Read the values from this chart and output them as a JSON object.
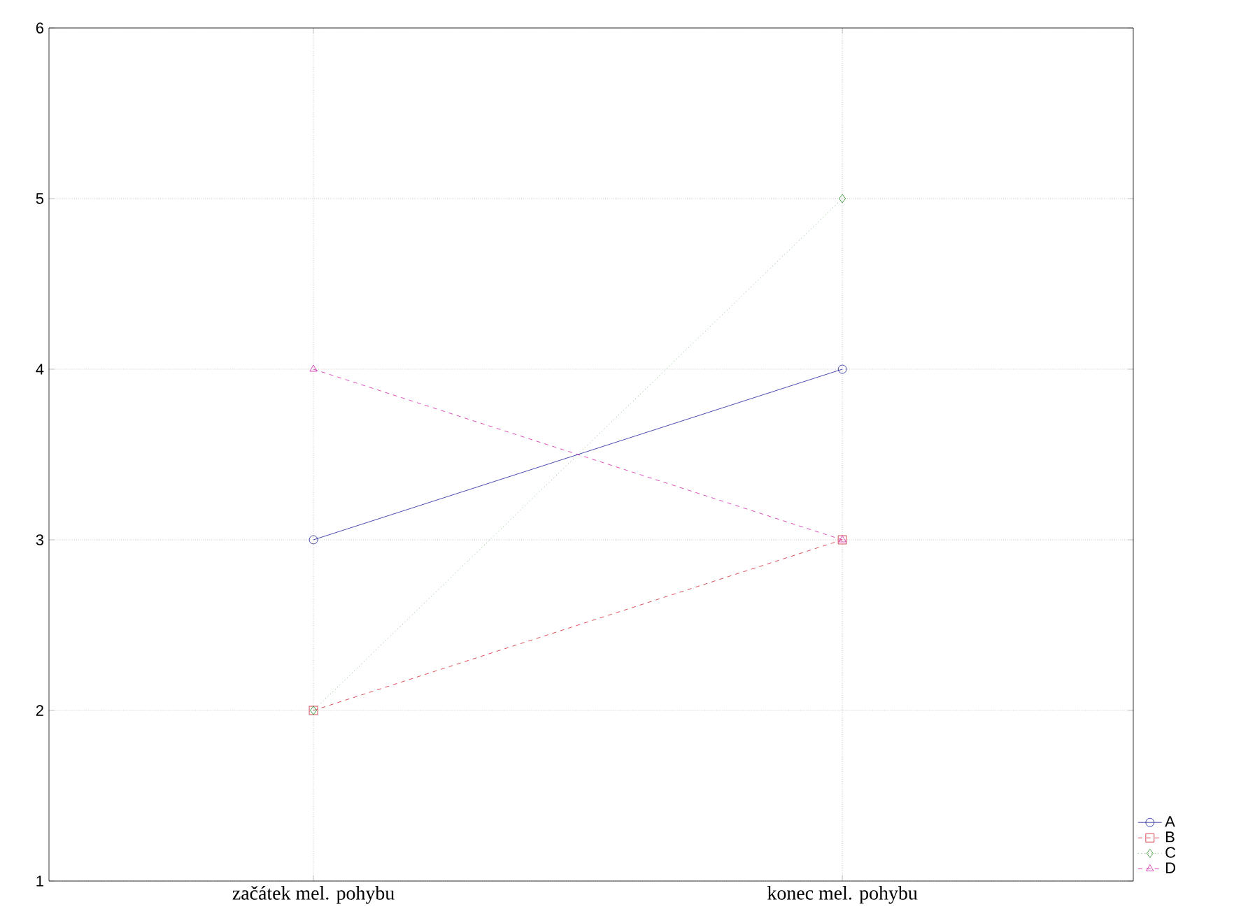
{
  "chart_data": {
    "type": "line",
    "categories": [
      "začátek mel. pohybu",
      "konec mel. pohybu"
    ],
    "series": [
      {
        "name": "A",
        "color": "#1c1c9c",
        "values": [
          3,
          4
        ],
        "marker": "circle",
        "line_style": "solid"
      },
      {
        "name": "B",
        "color": "#d02030",
        "values": [
          2,
          3
        ],
        "marker": "square",
        "line_style": "dashed"
      },
      {
        "name": "C",
        "color": "#208a20",
        "values": [
          2,
          5
        ],
        "marker": "diamond",
        "line_style": "dotted"
      },
      {
        "name": "D",
        "color": "#d020a8",
        "values": [
          4,
          3
        ],
        "marker": "triangle",
        "line_style": "dashed"
      }
    ],
    "ylim": [
      1,
      6
    ],
    "yticks": [
      1,
      2,
      3,
      4,
      5,
      6
    ],
    "grid": true,
    "legend": "bottom right"
  }
}
